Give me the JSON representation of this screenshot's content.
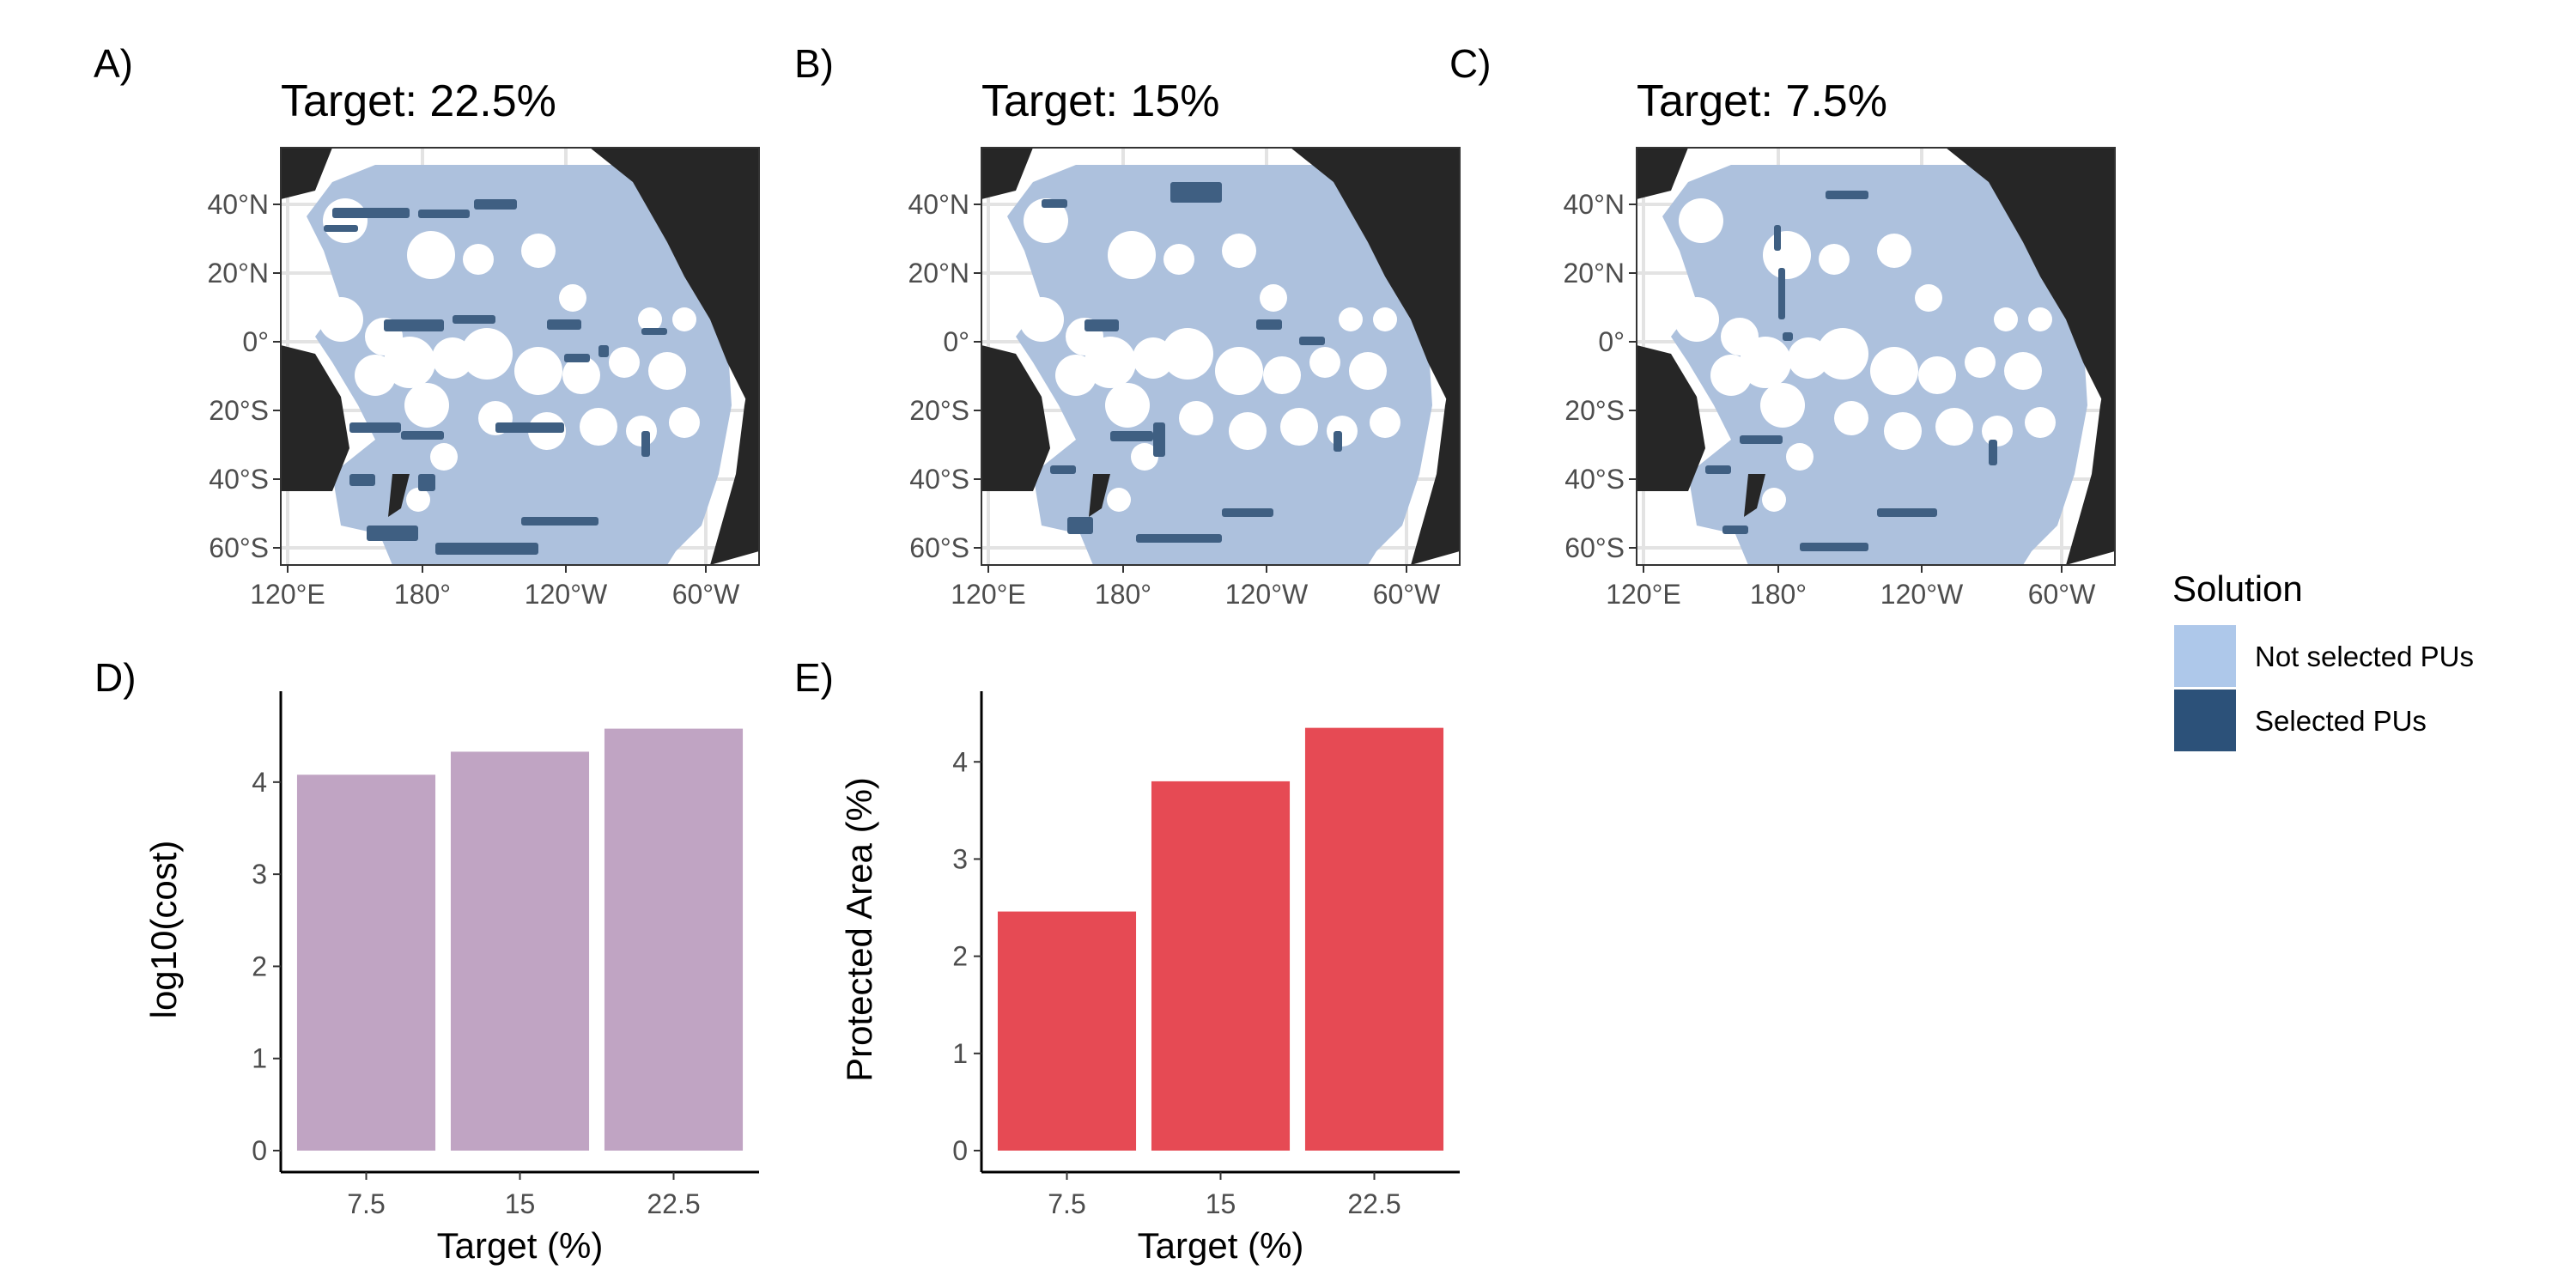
{
  "maps": [
    {
      "letter": "A)",
      "title": "Target: 22.5%",
      "selected_level": "high"
    },
    {
      "letter": "B)",
      "title": "Target: 15%",
      "selected_level": "medium"
    },
    {
      "letter": "C)",
      "title": "Target: 7.5%",
      "selected_level": "low"
    }
  ],
  "map_axes": {
    "lat_labels": [
      "40°N",
      "20°N",
      "0°",
      "20°S",
      "40°S",
      "60°S"
    ],
    "lat_values": [
      40,
      20,
      0,
      -20,
      -40,
      -60
    ],
    "lon_labels": [
      "120°E",
      "180°",
      "120°W",
      "60°W"
    ],
    "lon_values": [
      120,
      180,
      240,
      300
    ]
  },
  "legend": {
    "title": "Solution",
    "items": [
      {
        "label": "Not selected PUs",
        "color": "#aec8ea"
      },
      {
        "label": "Selected PUs",
        "color": "#2c5179"
      }
    ]
  },
  "colors": {
    "land": "#262626",
    "ocean_selected_area": "#adc1dd",
    "selected_pus": "#3f5f82",
    "cost_bars": "#c0a4c3",
    "area_bars": "#e64a54"
  },
  "chart_data": [
    {
      "type": "bar",
      "letter": "D)",
      "categories": [
        "7.5",
        "15",
        "22.5"
      ],
      "values": [
        4.08,
        4.33,
        4.58
      ],
      "xlabel": "Target (%)",
      "ylabel": "log10(cost)",
      "ylim": [
        0,
        4.8
      ],
      "yticks": [
        0,
        1,
        2,
        3,
        4
      ],
      "color": "#c0a4c3"
    },
    {
      "type": "bar",
      "letter": "E)",
      "categories": [
        "7.5",
        "15",
        "22.5"
      ],
      "values": [
        2.46,
        3.8,
        4.35
      ],
      "xlabel": "Target (%)",
      "ylabel": "Protected Area (%)",
      "ylim": [
        0,
        4.55
      ],
      "yticks": [
        0,
        1,
        2,
        3,
        4
      ],
      "color": "#e64a54"
    }
  ]
}
